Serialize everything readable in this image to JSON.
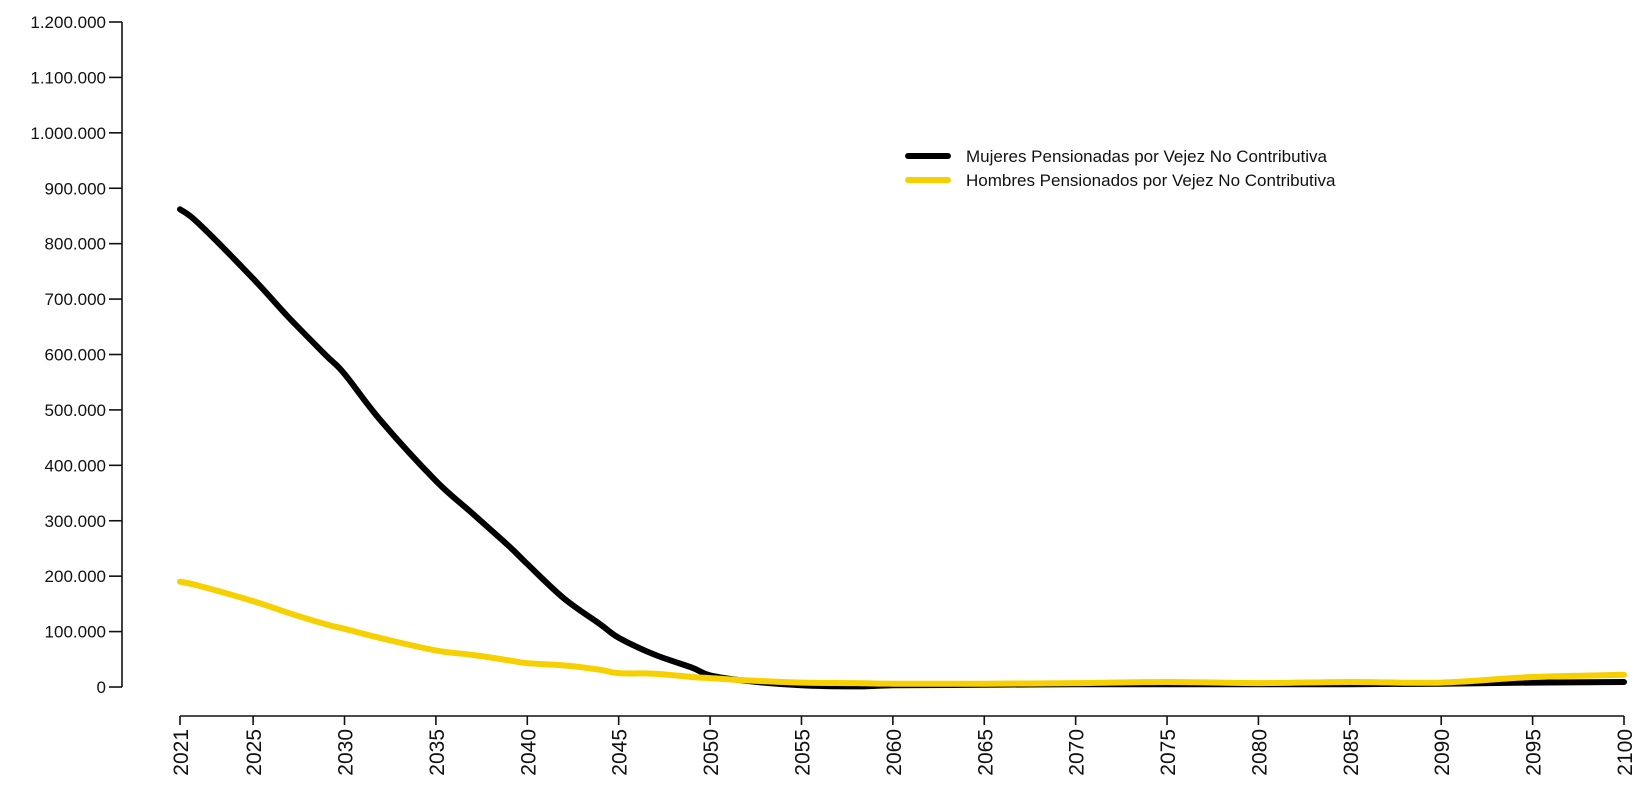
{
  "chart_data": {
    "type": "line",
    "title": "",
    "xlabel": "",
    "ylabel": "",
    "xlim": [
      2021,
      2100
    ],
    "ylim": [
      0,
      1200000
    ],
    "grid": false,
    "legend_placement": "top-right",
    "y_ticks": [
      {
        "value": 0,
        "label": "0"
      },
      {
        "value": 100000,
        "label": "100.000"
      },
      {
        "value": 200000,
        "label": "200.000"
      },
      {
        "value": 300000,
        "label": "300.000"
      },
      {
        "value": 400000,
        "label": "400.000"
      },
      {
        "value": 500000,
        "label": "500.000"
      },
      {
        "value": 600000,
        "label": "600.000"
      },
      {
        "value": 700000,
        "label": "700.000"
      },
      {
        "value": 800000,
        "label": "800.000"
      },
      {
        "value": 900000,
        "label": "900.000"
      },
      {
        "value": 1000000,
        "label": "1.000.000"
      },
      {
        "value": 1100000,
        "label": "1.100.000"
      },
      {
        "value": 1200000,
        "label": "1.200.000"
      }
    ],
    "x_ticks": [
      {
        "value": 2021,
        "label": "2021"
      },
      {
        "value": 2025,
        "label": "2025"
      },
      {
        "value": 2030,
        "label": "2030"
      },
      {
        "value": 2035,
        "label": "2035"
      },
      {
        "value": 2040,
        "label": "2040"
      },
      {
        "value": 2045,
        "label": "2045"
      },
      {
        "value": 2050,
        "label": "2050"
      },
      {
        "value": 2055,
        "label": "2055"
      },
      {
        "value": 2060,
        "label": "2060"
      },
      {
        "value": 2065,
        "label": "2065"
      },
      {
        "value": 2070,
        "label": "2070"
      },
      {
        "value": 2075,
        "label": "2075"
      },
      {
        "value": 2080,
        "label": "2080"
      },
      {
        "value": 2085,
        "label": "2085"
      },
      {
        "value": 2090,
        "label": "2090"
      },
      {
        "value": 2095,
        "label": "2095"
      },
      {
        "value": 2100,
        "label": "2100"
      }
    ],
    "x": [
      2021,
      2022,
      2025,
      2027,
      2029,
      2030,
      2032,
      2035,
      2037,
      2039,
      2040,
      2042,
      2044,
      2045,
      2047,
      2049,
      2050,
      2052,
      2055,
      2058,
      2060,
      2065,
      2070,
      2075,
      2080,
      2085,
      2090,
      2095,
      2100
    ],
    "series": [
      {
        "name": "Mujeres Pensionadas por Vejez No Contributiva",
        "color": "#000000",
        "values": [
          862000,
          837000,
          737000,
          665000,
          598000,
          565000,
          480000,
          372000,
          313000,
          254000,
          222000,
          160000,
          113000,
          89000,
          58000,
          35000,
          21000,
          11000,
          3000,
          1000,
          3000,
          4000,
          5000,
          5000,
          5000,
          5000,
          6000,
          8000,
          9000
        ]
      },
      {
        "name": "Hombres Pensionados por Vejez No Contributiva",
        "color": "#f7d000",
        "values": [
          190000,
          183000,
          155000,
          133000,
          113000,
          105000,
          88000,
          66000,
          58000,
          48000,
          43000,
          39000,
          31000,
          25000,
          24000,
          18000,
          16000,
          12000,
          8000,
          7000,
          6000,
          6000,
          7000,
          9000,
          7000,
          9000,
          8000,
          18000,
          22000
        ]
      }
    ]
  }
}
